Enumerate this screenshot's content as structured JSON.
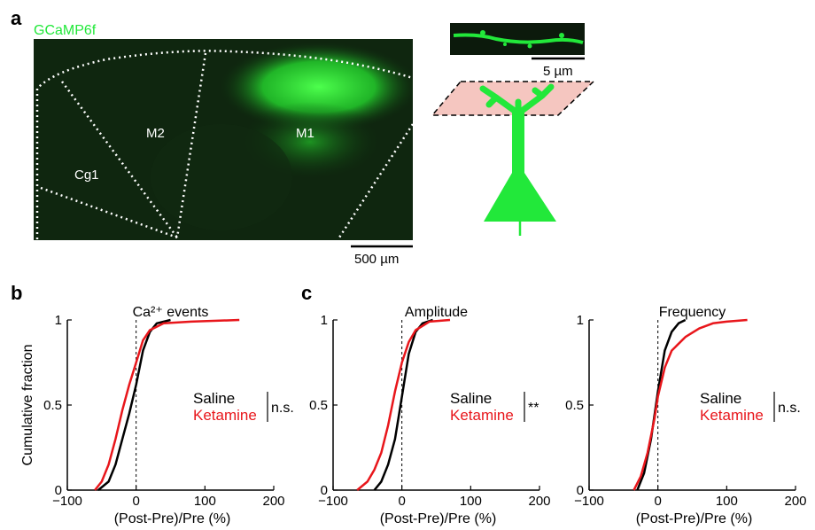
{
  "panel_labels": {
    "a": "a",
    "b": "b",
    "c": "c"
  },
  "panel_a": {
    "indicator": "GCaMP6f",
    "regions": [
      "Cg1",
      "M2",
      "M1"
    ],
    "scale_main": "500 µm",
    "scale_inset": "5 µm",
    "colors": {
      "fluorescence": "#22e83a",
      "plane": "#f5c6c0",
      "background": "#0c1f0c"
    }
  },
  "chart_data": [
    {
      "type": "line",
      "title": "Ca²⁺ events",
      "xlabel": "(Post-Pre)/Pre (%)",
      "ylabel": "Cumulative fraction",
      "xlim": [
        -100,
        200
      ],
      "ylim": [
        0,
        1
      ],
      "xticks": [
        "−100",
        "0",
        "100",
        "200"
      ],
      "yticks": [
        "0",
        "0.5",
        "1"
      ],
      "vline_x": 0,
      "significance": "n.s.",
      "series": [
        {
          "name": "Saline",
          "color": "#000000",
          "x": [
            -55,
            -40,
            -30,
            -20,
            -10,
            0,
            10,
            20,
            30,
            50
          ],
          "y": [
            0,
            0.05,
            0.15,
            0.3,
            0.45,
            0.62,
            0.82,
            0.93,
            0.98,
            1
          ]
        },
        {
          "name": "Ketamine",
          "color": "#e8161b",
          "x": [
            -60,
            -50,
            -40,
            -30,
            -20,
            -10,
            0,
            10,
            20,
            40,
            80,
            150
          ],
          "y": [
            0,
            0.05,
            0.15,
            0.3,
            0.47,
            0.62,
            0.75,
            0.88,
            0.94,
            0.98,
            0.99,
            1
          ]
        }
      ]
    },
    {
      "type": "line",
      "title": "Amplitude",
      "xlabel": "(Post-Pre)/Pre (%)",
      "xlim": [
        -100,
        200
      ],
      "ylim": [
        0,
        1
      ],
      "xticks": [
        "−100",
        "0",
        "100",
        "200"
      ],
      "yticks": [
        "0",
        "0.5",
        "1"
      ],
      "vline_x": 0,
      "significance": "**",
      "series": [
        {
          "name": "Saline",
          "color": "#000000",
          "x": [
            -40,
            -30,
            -20,
            -10,
            0,
            10,
            20,
            30,
            45
          ],
          "y": [
            0,
            0.05,
            0.15,
            0.3,
            0.55,
            0.8,
            0.93,
            0.98,
            1
          ]
        },
        {
          "name": "Ketamine",
          "color": "#e8161b",
          "x": [
            -65,
            -50,
            -40,
            -30,
            -20,
            -10,
            0,
            10,
            20,
            40,
            70
          ],
          "y": [
            0,
            0.05,
            0.12,
            0.22,
            0.38,
            0.58,
            0.75,
            0.87,
            0.94,
            0.99,
            1
          ]
        }
      ]
    },
    {
      "type": "line",
      "title": "Frequency",
      "xlabel": "(Post-Pre)/Pre (%)",
      "xlim": [
        -100,
        200
      ],
      "ylim": [
        0,
        1
      ],
      "xticks": [
        "−100",
        "0",
        "100",
        "200"
      ],
      "yticks": [
        "0",
        "0.5",
        "1"
      ],
      "vline_x": 0,
      "significance": "n.s.",
      "series": [
        {
          "name": "Saline",
          "color": "#000000",
          "x": [
            -30,
            -20,
            -10,
            0,
            10,
            20,
            30,
            40
          ],
          "y": [
            0,
            0.1,
            0.3,
            0.58,
            0.82,
            0.93,
            0.98,
            1
          ]
        },
        {
          "name": "Ketamine",
          "color": "#e8161b",
          "x": [
            -35,
            -25,
            -15,
            -5,
            0,
            10,
            20,
            40,
            60,
            80,
            100,
            130
          ],
          "y": [
            0,
            0.08,
            0.22,
            0.42,
            0.55,
            0.72,
            0.82,
            0.9,
            0.95,
            0.98,
            0.99,
            1
          ]
        }
      ]
    }
  ]
}
